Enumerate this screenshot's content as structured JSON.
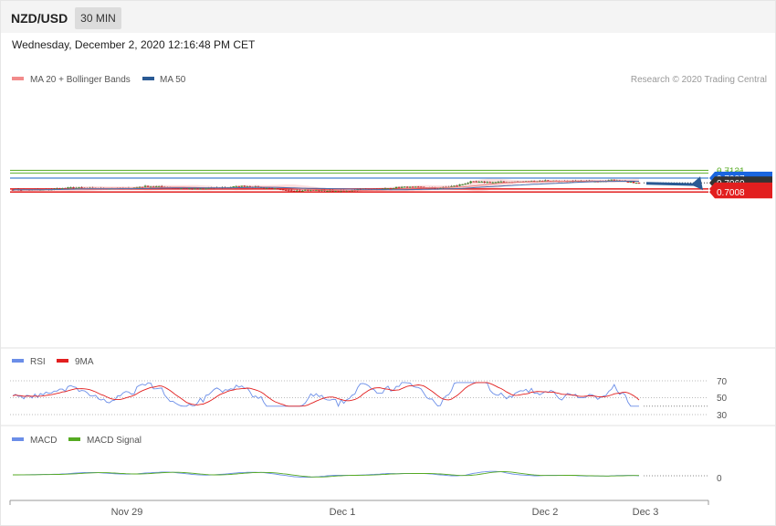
{
  "header": {
    "symbol": "NZD/USD",
    "timeframe": "30 MIN",
    "datetime": "Wednesday, December 2, 2020 12:16:48 PM CET"
  },
  "legend": {
    "ma20": "MA 20 + Bollinger Bands",
    "ma50": "MA 50",
    "credit": "Research © 2020 Trading Central"
  },
  "colors": {
    "resistance_green": "#5cae2a",
    "pivot_blue": "#1565c0",
    "support_red": "#e21f1f",
    "candle_up": "#3f8e2a",
    "candle_down": "#cc2222",
    "bollinger_fill": "#fbd5d5",
    "ma20_line": "#e88080",
    "ma50_line": "#4a6fae",
    "arrow": "#2a5a94",
    "rsi_line": "#6b8ee8",
    "rsi_ma_line": "#e21f1f",
    "macd_line": "#6b8ee8",
    "macd_signal_line": "#55aa22"
  },
  "chart_data": [
    {
      "type": "candlestick",
      "name": "price",
      "ylim": [
        0.699,
        0.714
      ],
      "levels": [
        {
          "value": 0.7131,
          "label": "0.7131",
          "kind": "resistance"
        },
        {
          "value": 0.7115,
          "label": "0.7115",
          "kind": "resistance"
        },
        {
          "value": 0.7087,
          "label": "0.7087",
          "kind": "pivot"
        },
        {
          "value": 0.706,
          "label": "0.7060",
          "kind": "last"
        },
        {
          "value": 0.7025,
          "label": "0.7025",
          "kind": "support"
        },
        {
          "value": 0.7008,
          "label": "0.7008",
          "kind": "support"
        }
      ],
      "forecast_arrow": {
        "from": 0.7057,
        "to": 0.7008
      },
      "legend": [
        "MA 20 + Bollinger Bands",
        "MA 50"
      ]
    },
    {
      "type": "line",
      "name": "rsi",
      "ylim": [
        30,
        70
      ],
      "ticks": [
        "70",
        "50",
        "30"
      ],
      "legend": [
        "RSI",
        "9MA"
      ]
    },
    {
      "type": "line",
      "name": "macd",
      "ticks": [
        "0"
      ],
      "legend": [
        "MACD",
        "MACD Signal"
      ]
    }
  ],
  "x_axis": {
    "labels": [
      "Nov 29",
      "Dec 1",
      "Dec 2",
      "Dec 3"
    ]
  }
}
